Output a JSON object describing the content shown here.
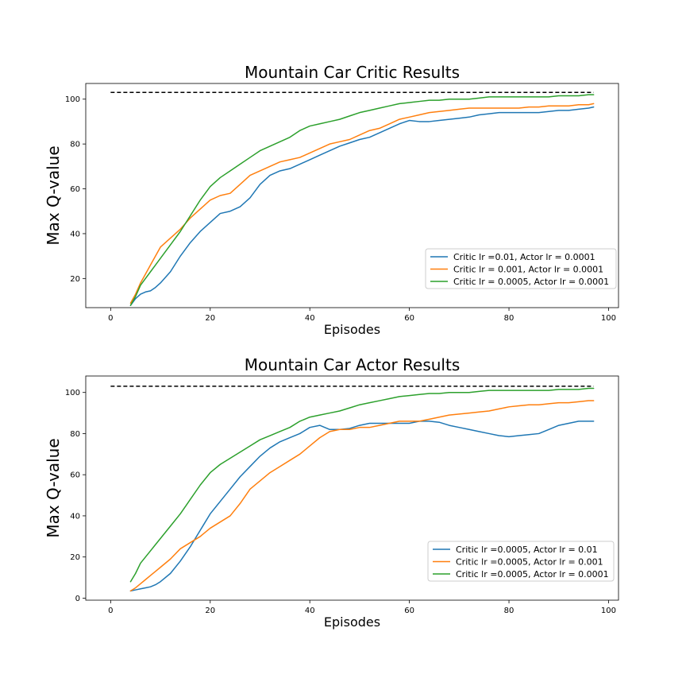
{
  "chart_data": [
    {
      "type": "line",
      "title": "Mountain Car Critic Results",
      "xlabel": "Episodes",
      "ylabel": "Max Q-value",
      "xlim": [
        -5,
        102
      ],
      "ylim": [
        7,
        107
      ],
      "xticks": [
        0,
        20,
        40,
        60,
        80,
        100
      ],
      "yticks": [
        20,
        40,
        60,
        80,
        100
      ],
      "legend": "lower-right",
      "reference_line": {
        "y": 103,
        "x": [
          0,
          97
        ],
        "style": "dashed",
        "color": "#000000"
      },
      "series": [
        {
          "name": "Critic lr =0.01, Actor lr = 0.0001",
          "color": "#1f77b4",
          "x": [
            4,
            5,
            6,
            7,
            8,
            9,
            10,
            12,
            14,
            16,
            18,
            20,
            22,
            24,
            26,
            28,
            30,
            32,
            34,
            36,
            38,
            40,
            42,
            44,
            46,
            48,
            50,
            52,
            54,
            56,
            58,
            60,
            62,
            64,
            66,
            68,
            70,
            72,
            74,
            76,
            78,
            80,
            82,
            84,
            86,
            88,
            90,
            92,
            94,
            96,
            97
          ],
          "y": [
            8,
            11,
            13,
            14,
            14.5,
            16,
            18,
            23,
            30,
            36,
            41,
            45,
            49,
            50,
            52,
            56,
            62,
            66,
            68,
            69,
            71,
            73,
            75,
            77,
            79,
            80.5,
            82,
            83,
            85,
            87,
            89,
            90.5,
            90,
            90,
            90.5,
            91,
            91.5,
            92,
            93,
            93.5,
            94,
            94,
            94,
            94,
            94,
            94.5,
            95,
            95,
            95.5,
            96,
            96.5
          ]
        },
        {
          "name": "Critic lr = 0.001, Actor lr = 0.0001",
          "color": "#ff7f0e",
          "x": [
            4,
            5,
            6,
            7,
            8,
            9,
            10,
            12,
            14,
            16,
            18,
            20,
            22,
            24,
            26,
            28,
            30,
            32,
            34,
            36,
            38,
            40,
            42,
            44,
            46,
            48,
            50,
            52,
            54,
            56,
            58,
            60,
            62,
            64,
            66,
            68,
            70,
            72,
            74,
            76,
            78,
            80,
            82,
            84,
            86,
            88,
            90,
            92,
            94,
            96,
            97
          ],
          "y": [
            9,
            13,
            18,
            22,
            26,
            30,
            34,
            38,
            42,
            47,
            51,
            55,
            57,
            58,
            62,
            66,
            68,
            70,
            72,
            73,
            74,
            76,
            78,
            80,
            81,
            82,
            84,
            86,
            87,
            89,
            91,
            92,
            93,
            94,
            94.5,
            95,
            95.5,
            96,
            96,
            96,
            96,
            96,
            96,
            96.5,
            96.5,
            97,
            97,
            97,
            97.5,
            97.5,
            98
          ]
        },
        {
          "name": "Critic lr = 0.0005, Actor lr = 0.0001",
          "color": "#2ca02c",
          "x": [
            4,
            5,
            6,
            7,
            8,
            9,
            10,
            12,
            14,
            16,
            18,
            20,
            22,
            24,
            26,
            28,
            30,
            32,
            34,
            36,
            38,
            40,
            42,
            44,
            46,
            48,
            50,
            52,
            54,
            56,
            58,
            60,
            62,
            64,
            66,
            68,
            70,
            72,
            74,
            76,
            78,
            80,
            82,
            84,
            86,
            88,
            90,
            92,
            94,
            96,
            97
          ],
          "y": [
            8,
            12,
            17,
            20,
            23,
            26,
            29,
            35,
            41,
            48,
            55,
            61,
            65,
            68,
            71,
            74,
            77,
            79,
            81,
            83,
            86,
            88,
            89,
            90,
            91,
            92.5,
            94,
            95,
            96,
            97,
            98,
            98.5,
            99,
            99.5,
            99.5,
            100,
            100,
            100,
            100.5,
            101,
            101,
            101,
            101,
            101,
            101,
            101,
            101.5,
            101.5,
            101.5,
            102,
            102
          ]
        }
      ]
    },
    {
      "type": "line",
      "title": "Mountain Car Actor Results",
      "xlabel": "Episodes",
      "ylabel": "Max Q-value",
      "xlim": [
        -5,
        102
      ],
      "ylim": [
        -1,
        108
      ],
      "xticks": [
        0,
        20,
        40,
        60,
        80,
        100
      ],
      "yticks": [
        0,
        20,
        40,
        60,
        80,
        100
      ],
      "legend": "lower-right",
      "reference_line": {
        "y": 103,
        "x": [
          0,
          97
        ],
        "style": "dashed",
        "color": "#000000"
      },
      "series": [
        {
          "name": "Critic lr =0.0005, Actor lr = 0.01",
          "color": "#1f77b4",
          "x": [
            4,
            5,
            6,
            7,
            8,
            9,
            10,
            12,
            14,
            16,
            18,
            20,
            22,
            24,
            26,
            28,
            30,
            32,
            34,
            36,
            38,
            40,
            42,
            44,
            46,
            48,
            50,
            52,
            54,
            56,
            58,
            60,
            62,
            64,
            66,
            68,
            70,
            72,
            74,
            76,
            78,
            80,
            82,
            84,
            86,
            88,
            90,
            92,
            94,
            96,
            97
          ],
          "y": [
            3.5,
            4,
            4.5,
            5,
            5.5,
            6.5,
            8,
            12,
            18,
            25,
            33,
            41,
            47,
            53,
            59,
            64,
            69,
            73,
            76,
            78,
            80,
            83,
            84,
            82,
            82,
            82.5,
            84,
            85,
            85,
            85,
            85,
            85,
            86,
            86,
            85.5,
            84,
            83,
            82,
            81,
            80,
            79,
            78.5,
            79,
            79.5,
            80,
            82,
            84,
            85,
            86,
            86,
            86
          ]
        },
        {
          "name": "Critic lr =0.0005, Actor lr = 0.001",
          "color": "#ff7f0e",
          "x": [
            4,
            5,
            6,
            7,
            8,
            9,
            10,
            12,
            14,
            16,
            18,
            20,
            22,
            24,
            26,
            28,
            30,
            32,
            34,
            36,
            38,
            40,
            42,
            44,
            46,
            48,
            50,
            52,
            54,
            56,
            58,
            60,
            62,
            64,
            66,
            68,
            70,
            72,
            74,
            76,
            78,
            80,
            82,
            84,
            86,
            88,
            90,
            92,
            94,
            96,
            97
          ],
          "y": [
            3.5,
            5,
            7,
            9,
            11,
            13,
            15,
            19,
            24,
            27,
            30,
            34,
            37,
            40,
            46,
            53,
            57,
            61,
            64,
            67,
            70,
            74,
            78,
            81,
            82,
            82,
            83,
            83,
            84,
            85,
            86,
            86,
            86,
            87,
            88,
            89,
            89.5,
            90,
            90.5,
            91,
            92,
            93,
            93.5,
            94,
            94,
            94.5,
            95,
            95,
            95.5,
            96,
            96
          ]
        },
        {
          "name": "Critic lr =0.0005, Actor lr = 0.0001",
          "color": "#2ca02c",
          "x": [
            4,
            5,
            6,
            7,
            8,
            9,
            10,
            12,
            14,
            16,
            18,
            20,
            22,
            24,
            26,
            28,
            30,
            32,
            34,
            36,
            38,
            40,
            42,
            44,
            46,
            48,
            50,
            52,
            54,
            56,
            58,
            60,
            62,
            64,
            66,
            68,
            70,
            72,
            74,
            76,
            78,
            80,
            82,
            84,
            86,
            88,
            90,
            92,
            94,
            96,
            97
          ],
          "y": [
            8,
            12,
            17,
            20,
            23,
            26,
            29,
            35,
            41,
            48,
            55,
            61,
            65,
            68,
            71,
            74,
            77,
            79,
            81,
            83,
            86,
            88,
            89,
            90,
            91,
            92.5,
            94,
            95,
            96,
            97,
            98,
            98.5,
            99,
            99.5,
            99.5,
            100,
            100,
            100,
            100.5,
            101,
            101,
            101,
            101,
            101,
            101,
            101,
            101.5,
            101.5,
            101.5,
            102,
            102
          ]
        }
      ]
    }
  ]
}
